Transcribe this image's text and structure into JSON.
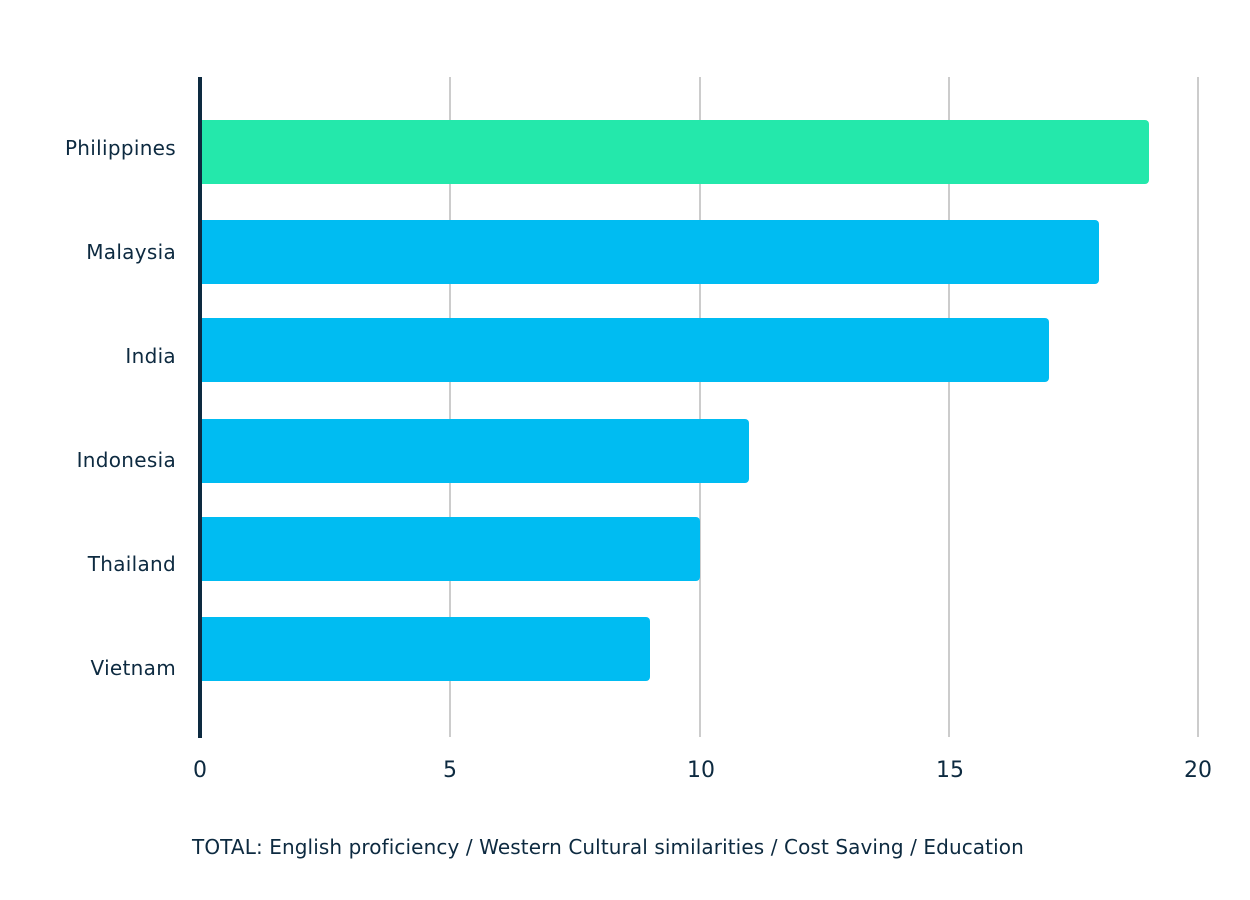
{
  "chart_data": {
    "type": "bar",
    "orientation": "horizontal",
    "title": "",
    "xlabel": "TOTAL: English proficiency / Western Cultural similarities / Cost Saving / Education",
    "ylabel": "",
    "categories": [
      "Philippines",
      "Malaysia",
      "India",
      "Indonesia",
      "Thailand",
      "Vietnam"
    ],
    "values": [
      19,
      18,
      17,
      11,
      10,
      9
    ],
    "xlim": [
      0,
      20
    ],
    "xticks": [
      "0",
      "5",
      "10",
      "15",
      "20"
    ],
    "grid": "vertical",
    "legend": "none",
    "colors": {
      "highlight": "#24e8ab",
      "default": "#00bcf2",
      "axis": "#0d2a40",
      "grid": "#cccccc",
      "text": "#0d2a40"
    }
  }
}
